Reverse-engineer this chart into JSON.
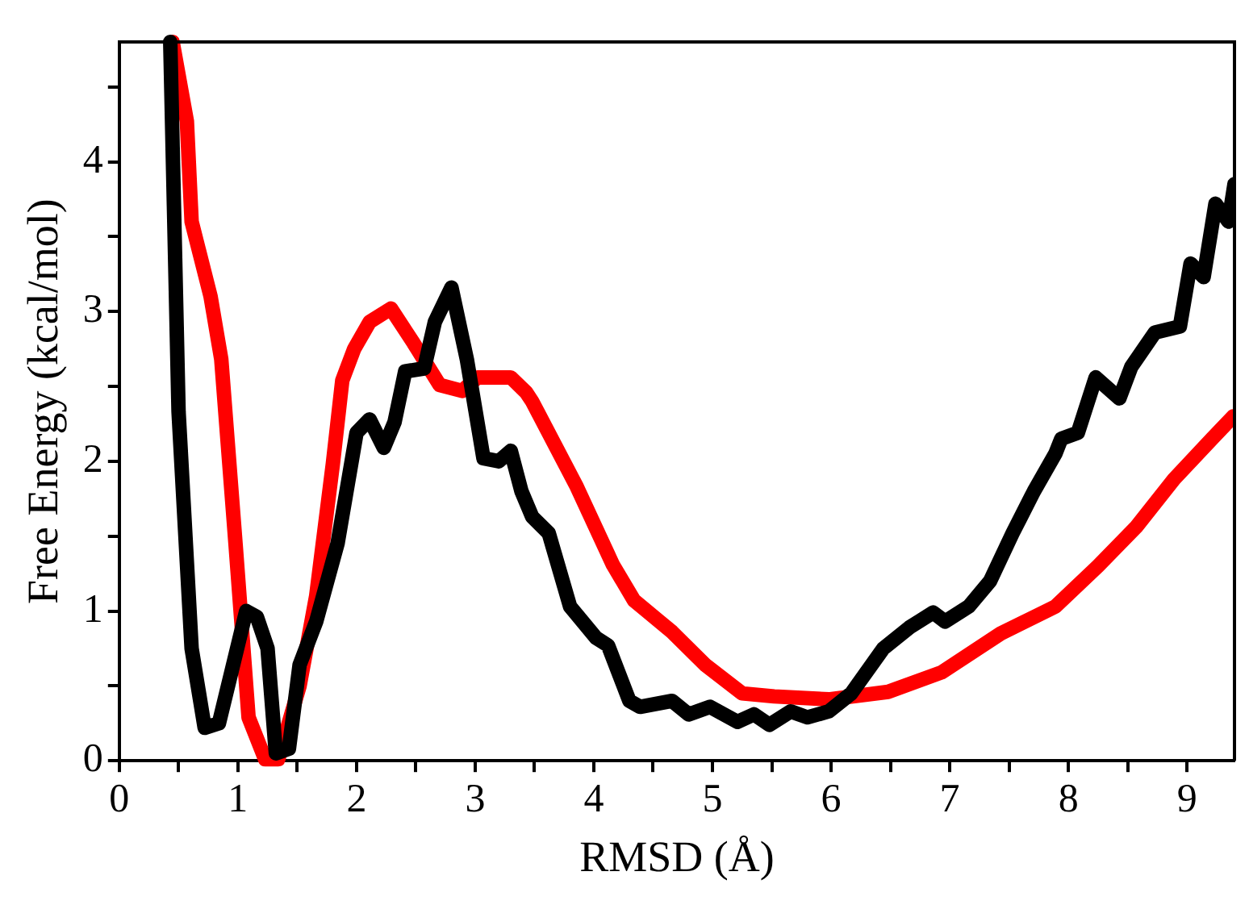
{
  "chart_data": {
    "type": "line",
    "xlabel": "RMSD (Å)",
    "ylabel": "Free Energy (kcal/mol)",
    "xlim": [
      0,
      9.4
    ],
    "ylim": [
      0,
      4.8
    ],
    "xticks": [
      0,
      {
        "value": 0.5,
        "label": null
      },
      1,
      {
        "value": 1.5,
        "label": null
      },
      2,
      {
        "value": 2.5,
        "label": null
      },
      3,
      {
        "value": 3.5,
        "label": null
      },
      4,
      {
        "value": 4.5,
        "label": null
      },
      5,
      {
        "value": 5.5,
        "label": null
      },
      6,
      {
        "value": 6.5,
        "label": null
      },
      7,
      {
        "value": 7.5,
        "label": null
      },
      8,
      {
        "value": 8.5,
        "label": null
      },
      9
    ],
    "yticks": [
      0,
      {
        "value": 0.5,
        "label": null
      },
      1,
      {
        "value": 1.5,
        "label": null
      },
      2,
      {
        "value": 2.5,
        "label": null
      },
      3,
      {
        "value": 3.5,
        "label": null
      },
      4,
      {
        "value": 4.5,
        "label": null
      }
    ],
    "grid": false,
    "legend": false,
    "marker": "none",
    "line_style": "solid",
    "series": [
      {
        "color": "#000000",
        "x": [
          0.43,
          0.5,
          0.61,
          0.72,
          0.84,
          1.07,
          1.16,
          1.25,
          1.32,
          1.43,
          1.52,
          1.66,
          1.84,
          2.0,
          2.11,
          2.23,
          2.32,
          2.41,
          2.57,
          2.66,
          2.8,
          2.93,
          3.07,
          3.2,
          3.3,
          3.39,
          3.48,
          3.62,
          3.8,
          4.02,
          4.12,
          4.3,
          4.39,
          4.66,
          4.8,
          4.98,
          5.21,
          5.35,
          5.48,
          5.66,
          5.8,
          5.98,
          6.17,
          6.44,
          6.66,
          6.86,
          6.96,
          7.16,
          7.34,
          7.53,
          7.71,
          7.89,
          7.94,
          8.08,
          8.23,
          8.43,
          8.53,
          8.73,
          8.94,
          9.03,
          9.14,
          9.24,
          9.35,
          9.4
        ],
        "values": [
          4.8,
          2.33,
          0.75,
          0.22,
          0.25,
          1.0,
          0.96,
          0.75,
          0.05,
          0.08,
          0.64,
          0.93,
          1.45,
          2.19,
          2.28,
          2.09,
          2.26,
          2.6,
          2.62,
          2.93,
          3.16,
          2.68,
          2.02,
          2.0,
          2.07,
          1.8,
          1.63,
          1.52,
          1.03,
          0.82,
          0.77,
          0.4,
          0.36,
          0.4,
          0.31,
          0.36,
          0.26,
          0.31,
          0.24,
          0.33,
          0.29,
          0.33,
          0.45,
          0.75,
          0.89,
          0.99,
          0.93,
          1.03,
          1.2,
          1.52,
          1.8,
          2.05,
          2.15,
          2.19,
          2.56,
          2.42,
          2.63,
          2.86,
          2.9,
          3.32,
          3.23,
          3.72,
          3.6,
          3.85
        ]
      },
      {
        "color": "#ff0000",
        "x": [
          0.45,
          0.57,
          0.61,
          0.77,
          0.86,
          0.98,
          1.09,
          1.23,
          1.34,
          1.52,
          1.66,
          1.8,
          1.88,
          1.98,
          2.11,
          2.29,
          2.48,
          2.7,
          2.89,
          3.02,
          3.3,
          3.43,
          3.48,
          3.85,
          4.16,
          4.34,
          4.66,
          4.94,
          5.25,
          5.52,
          5.98,
          6.48,
          6.93,
          7.43,
          7.89,
          8.25,
          8.57,
          8.89,
          9.21,
          9.39
        ],
        "values": [
          4.8,
          4.27,
          3.6,
          3.1,
          2.68,
          1.45,
          0.29,
          0.01,
          0.01,
          0.5,
          1.1,
          1.98,
          2.54,
          2.75,
          2.93,
          3.02,
          2.79,
          2.51,
          2.47,
          2.56,
          2.56,
          2.46,
          2.4,
          1.84,
          1.31,
          1.07,
          0.86,
          0.64,
          0.45,
          0.43,
          0.41,
          0.46,
          0.59,
          0.85,
          1.03,
          1.3,
          1.56,
          1.88,
          2.15,
          2.3
        ]
      }
    ]
  }
}
